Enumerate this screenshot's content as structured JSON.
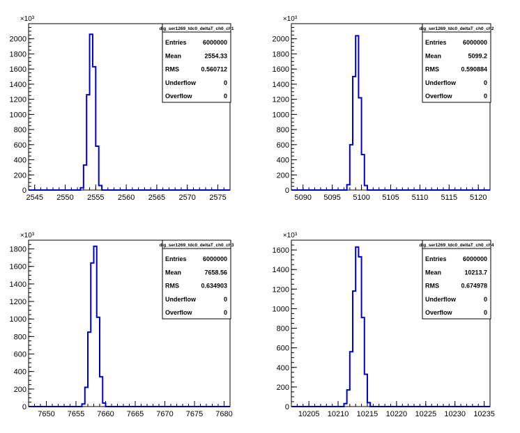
{
  "figure": {
    "exponent_label": "×10³",
    "stats_labels": [
      "Entries",
      "Mean",
      "RMS",
      "Underflow",
      "Overflow"
    ]
  },
  "colors": {
    "hist_line": "#0000cc",
    "axis": "#000000",
    "background": "#ffffff"
  },
  "chart_data": [
    {
      "type": "histogram",
      "title": "dig_ser1269_tdc0_deltaT_ch0_ch1",
      "stats": {
        "entries": "6000000",
        "mean": "2554.33",
        "rms": "0.560712",
        "underflow": "0",
        "overflow": "0"
      },
      "xlim": [
        2544,
        2577
      ],
      "ylim": [
        0,
        2200
      ],
      "y_scale_note": "x10^3",
      "xticks": [
        2545,
        2550,
        2555,
        2560,
        2565,
        2570,
        2575
      ],
      "yticks": [
        0,
        200,
        400,
        600,
        800,
        1000,
        1200,
        1400,
        1600,
        1800,
        2000
      ],
      "bin_edges": [
        2552.5,
        2553,
        2553.5,
        2554,
        2554.5,
        2555,
        2555.5,
        2556
      ],
      "values": [
        30,
        330,
        1260,
        2060,
        1630,
        580,
        60
      ]
    },
    {
      "type": "histogram",
      "title": "dig_ser1269_tdc0_deltaT_ch0_ch2",
      "stats": {
        "entries": "6000000",
        "mean": "5099.2",
        "rms": "0.590884",
        "underflow": "0",
        "overflow": "0"
      },
      "xlim": [
        5088,
        5122
      ],
      "ylim": [
        0,
        2200
      ],
      "y_scale_note": "x10^3",
      "xticks": [
        5090,
        5095,
        5100,
        5105,
        5110,
        5115,
        5120
      ],
      "yticks": [
        0,
        200,
        400,
        600,
        800,
        1000,
        1200,
        1400,
        1600,
        1800,
        2000
      ],
      "bin_edges": [
        5097.5,
        5098,
        5098.5,
        5099,
        5099.5,
        5100,
        5100.5,
        5101
      ],
      "values": [
        70,
        600,
        1500,
        2040,
        1220,
        470,
        60
      ]
    },
    {
      "type": "histogram",
      "title": "dig_ser1269_tdc0_deltaT_ch0_ch3",
      "stats": {
        "entries": "6000000",
        "mean": "7658.56",
        "rms": "0.634903",
        "underflow": "0",
        "overflow": "0"
      },
      "xlim": [
        7647,
        7681
      ],
      "ylim": [
        0,
        1900
      ],
      "y_scale_note": "x10^3",
      "xticks": [
        7650,
        7655,
        7660,
        7665,
        7670,
        7675,
        7680
      ],
      "yticks": [
        0,
        200,
        400,
        600,
        800,
        1000,
        1200,
        1400,
        1600,
        1800
      ],
      "bin_edges": [
        7656,
        7656.5,
        7657,
        7657.5,
        7658,
        7658.5,
        7659,
        7659.5,
        7660
      ],
      "values": [
        30,
        220,
        850,
        1640,
        1830,
        1020,
        340,
        40
      ]
    },
    {
      "type": "histogram",
      "title": "dig_ser1269_tdc0_deltaT_ch0_ch4",
      "stats": {
        "entries": "6000000",
        "mean": "10213.7",
        "rms": "0.674978",
        "underflow": "0",
        "overflow": "0"
      },
      "xlim": [
        10202,
        10236
      ],
      "ylim": [
        0,
        1700
      ],
      "y_scale_note": "x10^3",
      "xticks": [
        10205,
        10210,
        10215,
        10220,
        10225,
        10230,
        10235
      ],
      "yticks": [
        0,
        200,
        400,
        600,
        800,
        1000,
        1200,
        1400,
        1600
      ],
      "bin_edges": [
        10211,
        10211.5,
        10212,
        10212.5,
        10213,
        10213.5,
        10214,
        10214.5,
        10215,
        10215.5
      ],
      "values": [
        30,
        170,
        560,
        1180,
        1630,
        1530,
        910,
        330,
        40
      ]
    }
  ]
}
